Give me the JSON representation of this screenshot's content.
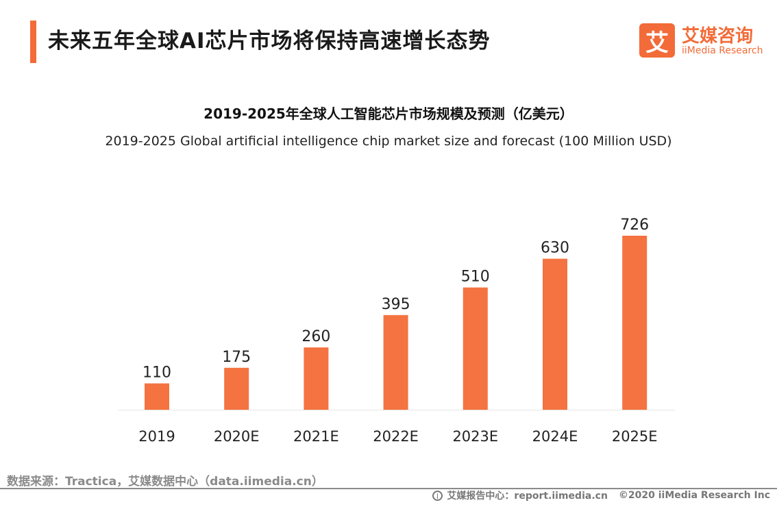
{
  "header": {
    "title": "未来五年全球AI芯片市场将保持高速增长态势",
    "accent_color": "#f26b38"
  },
  "logo": {
    "mark": "艾",
    "name_cn": "艾媒咨询",
    "name_en": "iiMedia Research"
  },
  "chart_data": {
    "type": "bar",
    "title": "2019-2025年全球人工智能芯片市场规模及预测（亿美元）",
    "subtitle": "2019-2025 Global artificial intelligence chip market size and forecast (100 Million USD)",
    "categories": [
      "2019",
      "2020E",
      "2021E",
      "2022E",
      "2023E",
      "2024E",
      "2025E"
    ],
    "values": [
      110,
      175,
      260,
      395,
      510,
      630,
      726
    ],
    "xlabel": "",
    "ylabel": "",
    "ylim": [
      0,
      726
    ],
    "grid": false,
    "bar_color": "#f47340",
    "data_labels": true
  },
  "footer": {
    "source": "数据来源：Tractica，艾媒数据中心（data.iimedia.cn）",
    "report_center": "艾媒报告中心：report.iimedia.cn",
    "copyright": "©2020  iiMedia Research  Inc"
  }
}
